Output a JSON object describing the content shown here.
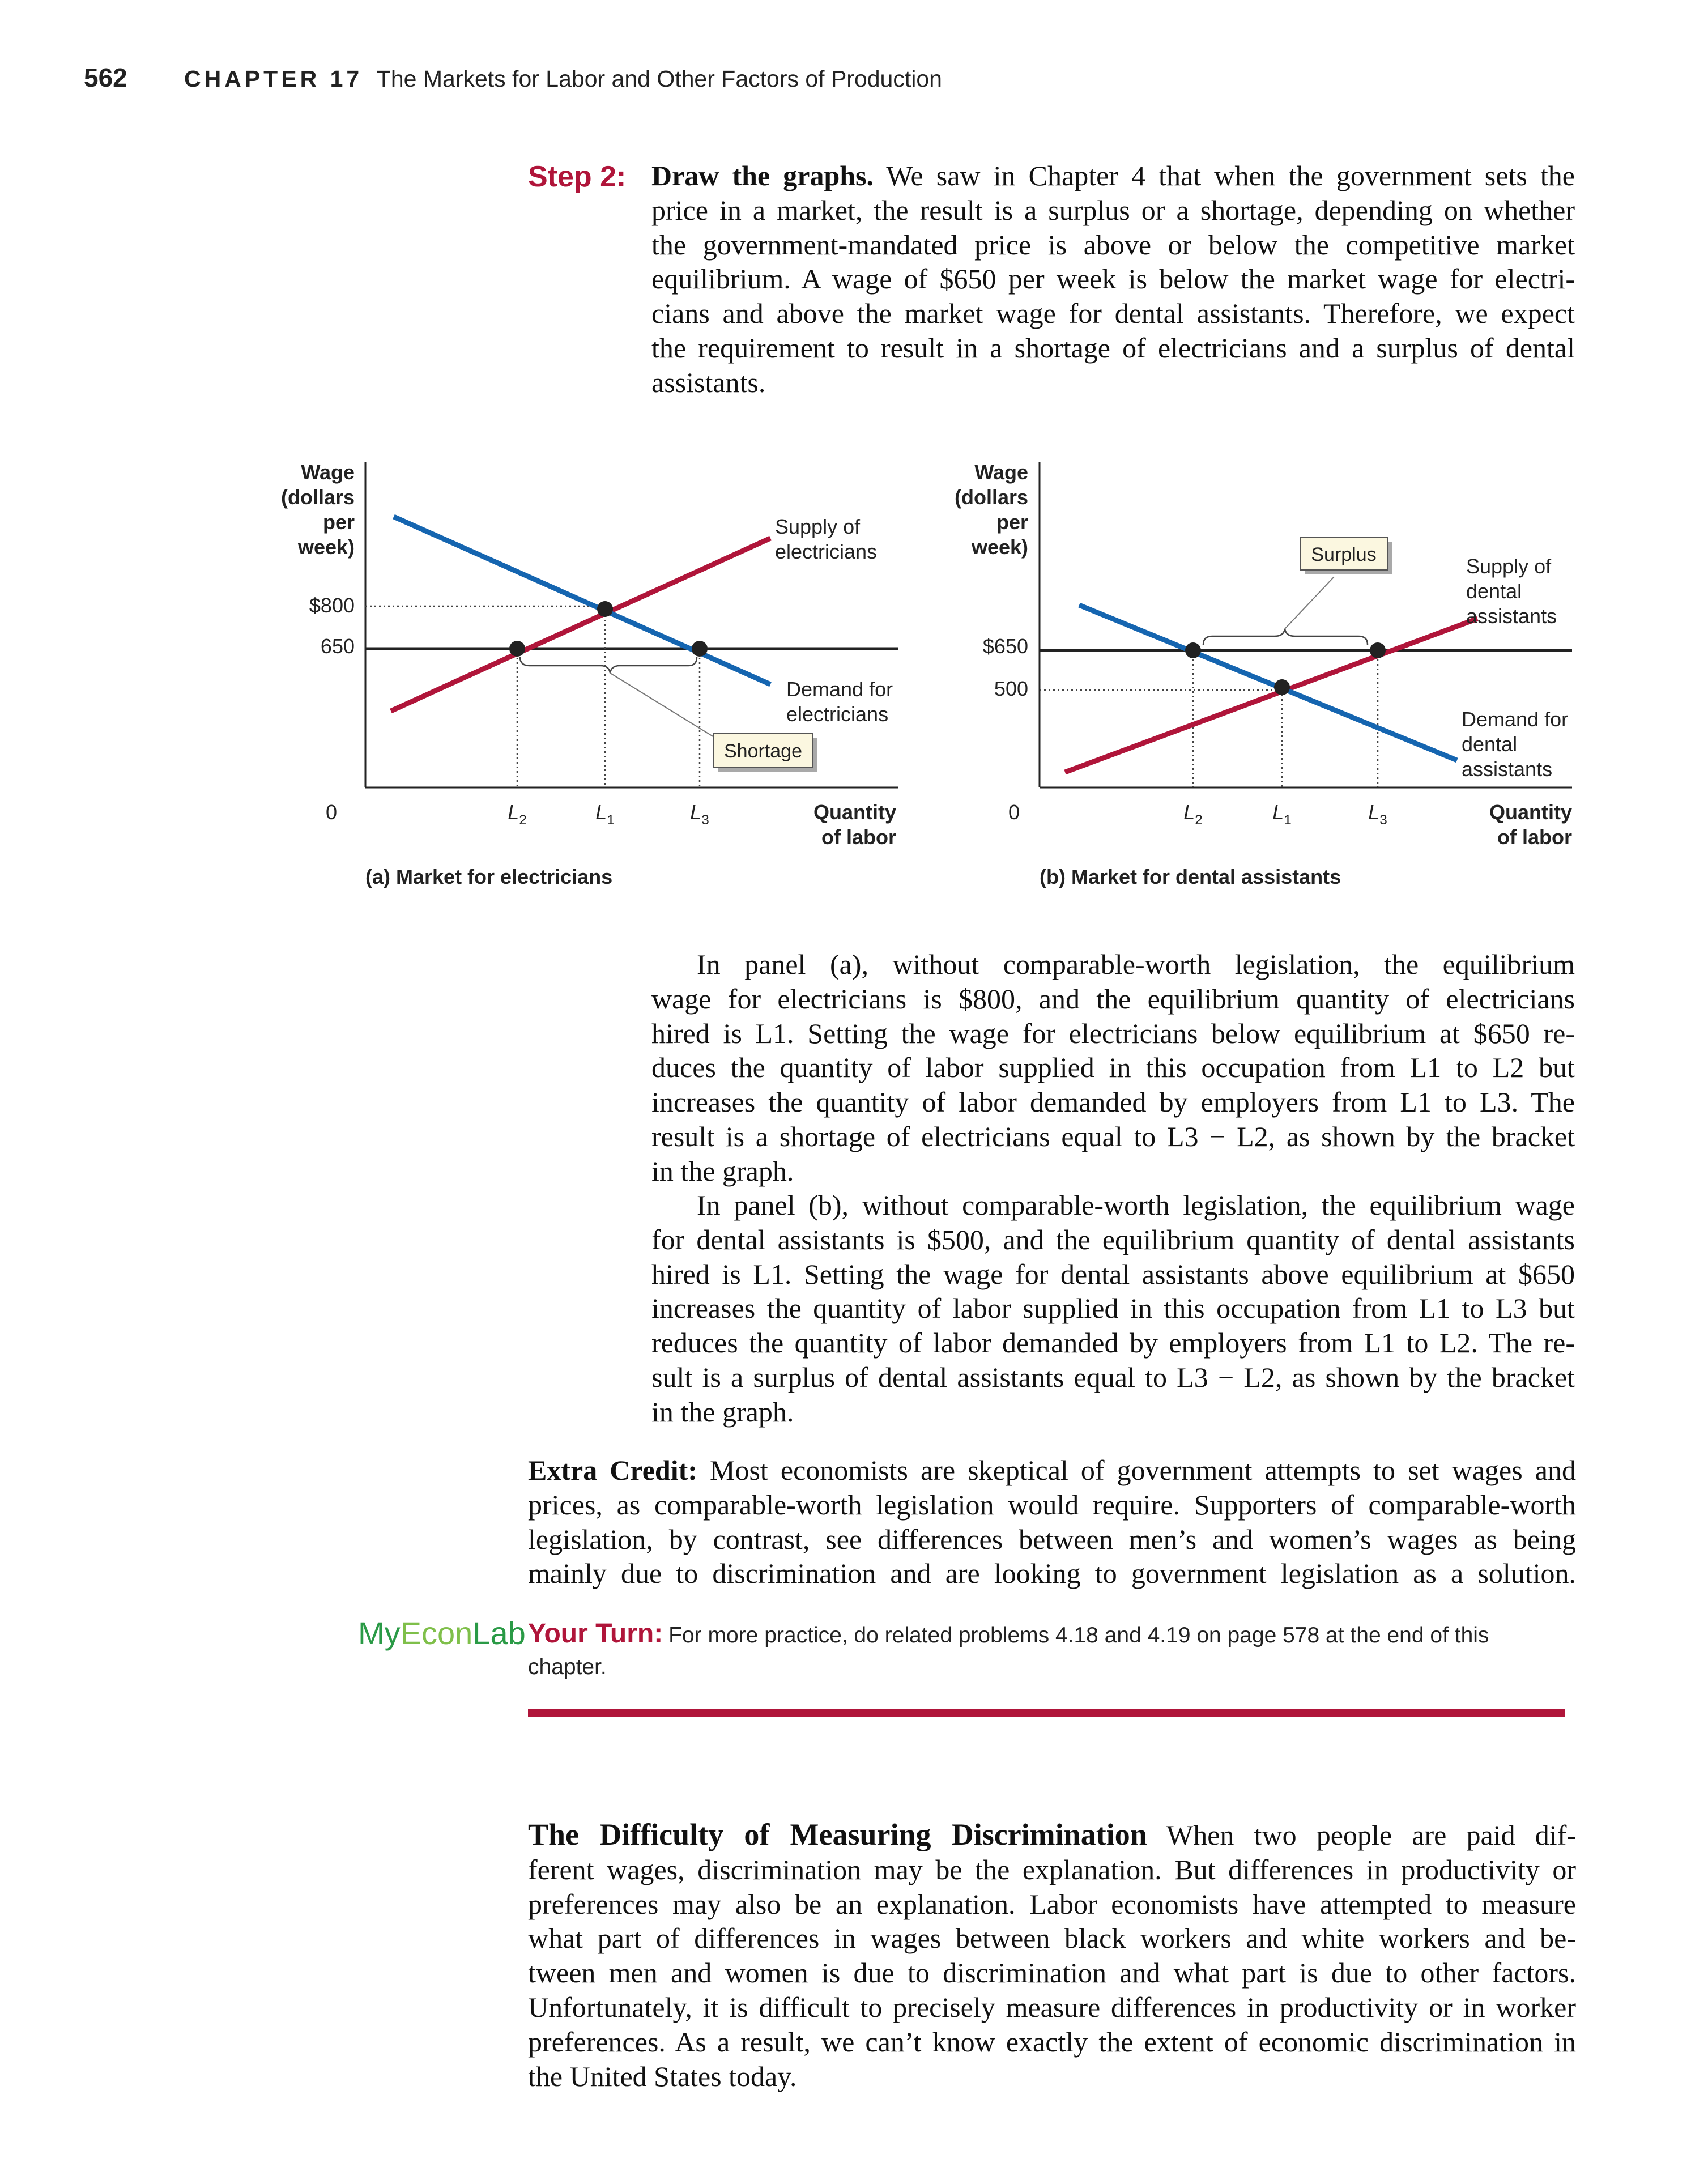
{
  "header": {
    "page_number": "562",
    "chapter": "CHAPTER 17",
    "chapter_title": "The Markets for Labor and Other Factors of Production"
  },
  "step2": {
    "label": "Step 2:",
    "lines": [
      {
        "bold": "Draw the graphs.",
        "text": " We saw in Chapter 4 that when the government sets the"
      },
      {
        "text": "price in a market, the result is a surplus or a shortage, depending on whether"
      },
      {
        "text": "the government-mandated price is above or below the competitive market"
      },
      {
        "text": "equilibrium. A wage of $650 per week is below the market wage for electri-"
      },
      {
        "text": "cians and above the market wage for dental assistants. Therefore, we expect"
      },
      {
        "text": "the requirement to result in a shortage of electricians and a surplus of dental"
      },
      {
        "text": "assistants."
      }
    ]
  },
  "chart_data": [
    {
      "type": "line",
      "caption": "(a) Market for electricians",
      "ylabel": "Wage (dollars per week)",
      "xlabel": "Quantity of labor",
      "origin_label": "0",
      "y_ticks": [
        "$800",
        "650"
      ],
      "x_ticks": [
        "L2",
        "L1",
        "L3"
      ],
      "series": [
        {
          "name": "Supply of electricians",
          "color": "#b0153a"
        },
        {
          "name": "Demand for electricians",
          "color": "#1565b0"
        }
      ],
      "equilibrium": {
        "wage": 800,
        "quantity": "L1"
      },
      "price_line": 650,
      "annotation": "Shortage"
    },
    {
      "type": "line",
      "caption": "(b) Market for dental assistants",
      "ylabel": "Wage (dollars per week)",
      "xlabel": "Quantity of labor",
      "origin_label": "0",
      "y_ticks": [
        "$650",
        "500"
      ],
      "x_ticks": [
        "L2",
        "L1",
        "L3"
      ],
      "series": [
        {
          "name": "Supply of dental assistants",
          "color": "#b0153a"
        },
        {
          "name": "Demand for dental assistants",
          "color": "#1565b0"
        }
      ],
      "equilibrium": {
        "wage": 500,
        "quantity": "L1"
      },
      "price_line": 650,
      "annotation": "Surplus"
    }
  ],
  "chart_labels": {
    "a": {
      "y1": "Wage",
      "y2": "(dollars",
      "y3": "per",
      "y4": "week)",
      "tick_800": "$800",
      "tick_650": "650",
      "zero": "0",
      "supply1": "Supply of",
      "supply2": "electricians",
      "demand1": "Demand for",
      "demand2": "electricians",
      "shortage": "Shortage",
      "x1": "Quantity",
      "x2": "of labor",
      "caption": "(a) Market for electricians"
    },
    "b": {
      "y1": "Wage",
      "y2": "(dollars",
      "y3": "per",
      "y4": "week)",
      "tick_650": "$650",
      "tick_500": "500",
      "zero": "0",
      "supply1": "Supply of",
      "supply2": "dental",
      "supply3": "assistants",
      "demand1": "Demand for",
      "demand2": "dental",
      "demand3": "assistants",
      "surplus": "Surplus",
      "x1": "Quantity",
      "x2": "of labor",
      "caption": "(b) Market for dental assistants"
    }
  },
  "panel_a_para": {
    "lines": [
      "In panel (a), without comparable-worth legislation, the equilibrium",
      "wage for electricians is $800, and the equilibrium quantity of electricians",
      "hired is L1. Setting the wage for electricians below equilibrium at $650 re-",
      "duces the quantity of labor supplied in this occupation from L1 to L2 but",
      "increases the quantity of labor demanded by employers from L1 to L3. The",
      "result is a shortage of electricians equal to L3 − L2, as shown by the bracket",
      "in the graph."
    ]
  },
  "panel_b_para": {
    "lines": [
      "In panel (b), without comparable-worth legislation, the equilibrium wage",
      "for dental assistants is $500, and the equilibrium quantity of dental assistants",
      "hired is L1. Setting the wage for dental assistants above equilibrium at $650",
      "increases the quantity of labor supplied in this occupation from L1 to L3 but",
      "reduces the quantity of labor demanded by employers from L1 to L2. The re-",
      "sult is a surplus of dental assistants equal to L3 − L2, as shown by the bracket",
      "in the graph."
    ]
  },
  "extra_credit": {
    "label": "Extra Credit:",
    "lines": [
      " Most economists are skeptical of government attempts to set wages and",
      "prices, as comparable-worth legislation would require. Supporters of comparable-worth",
      "legislation, by contrast, see differences between men’s and women’s wages as being",
      "mainly due to discrimination and are looking to government legislation as a solution."
    ]
  },
  "myeconlab": {
    "my": "My",
    "econ": "Econ",
    "lab": "Lab"
  },
  "your_turn": {
    "label": "Your Turn:",
    "text": "For more practice, do related problems 4.18 and 4.19 on page 578 at the end of this chapter."
  },
  "discrimination_section": {
    "heading": "The Difficulty of Measuring Discrimination",
    "lines": [
      "  When two people are paid dif-",
      "ferent wages, discrimination may be the explanation. But differences in productivity or",
      "preferences may also be an explanation. Labor economists have attempted to measure",
      "what part of differences in wages between black workers and white workers and be-",
      "tween men and women is due to discrimination and what part is due to other factors.",
      "Unfortunately, it is difficult to precisely measure differences in productivity or in worker",
      "preferences. As a result, we can’t know exactly the extent of economic discrimination in",
      "the United States today."
    ]
  }
}
